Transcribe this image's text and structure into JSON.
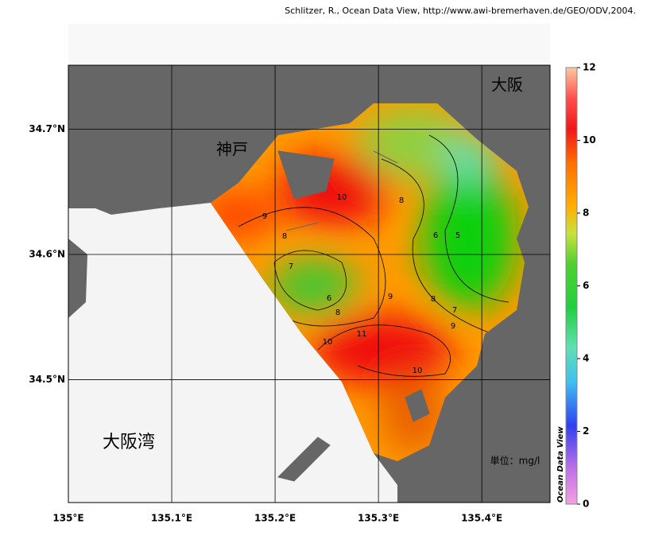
{
  "credit": "Schlitzer, R., Ocean Data View, http://www.awi-bremerhaven.de/GEO/ODV,2004.",
  "map": {
    "xlim": [
      135,
      135.466
    ],
    "ylim": [
      34.402,
      34.751
    ],
    "xticks": [
      {
        "value": 135,
        "label": "135°E"
      },
      {
        "value": 135.1,
        "label": "135.1°E"
      },
      {
        "value": 135.2,
        "label": "135.2°E"
      },
      {
        "value": 135.3,
        "label": "135.3°E"
      },
      {
        "value": 135.4,
        "label": "135.4°E"
      }
    ],
    "yticks": [
      {
        "value": 34.5,
        "label": "34.5°N"
      },
      {
        "value": 34.6,
        "label": "34.6°N"
      },
      {
        "value": 34.7,
        "label": "34.7°N"
      }
    ],
    "places": [
      "大阪",
      "神戸",
      "大阪湾"
    ],
    "contour_labels": [
      10,
      9,
      8,
      7,
      6,
      8,
      9,
      10,
      11,
      10,
      8,
      6,
      5,
      8,
      7,
      9
    ],
    "unit": "単位：mg/l",
    "brand": "Ocean Data View"
  },
  "colorbar": {
    "lim": [
      0,
      12
    ],
    "ticks": [
      0,
      2,
      4,
      6,
      8,
      10,
      12
    ]
  }
}
